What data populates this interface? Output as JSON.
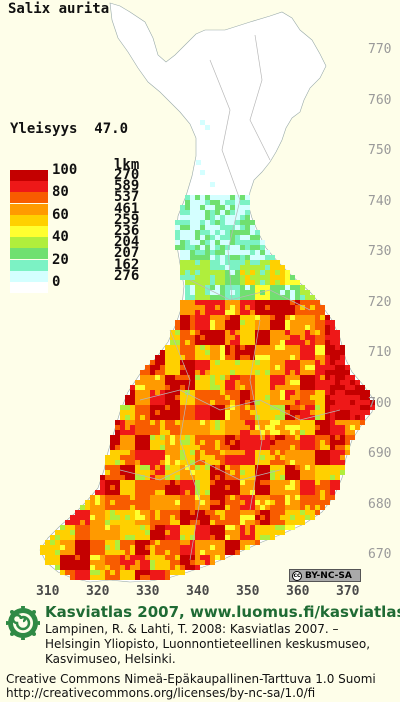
{
  "species": "Salix aurita",
  "frequency": {
    "label": "Yleisyys",
    "value": "47.0"
  },
  "legend": {
    "count_header": "lkm",
    "classes": [
      {
        "label": "100",
        "color": "#c40000",
        "count": "270"
      },
      {
        "label": "",
        "color": "#ee1818",
        "count": "589"
      },
      {
        "label": "80",
        "color": "#f85c00",
        "count": "537"
      },
      {
        "label": "",
        "color": "#ff9a00",
        "count": "461"
      },
      {
        "label": "60",
        "color": "#ffd000",
        "count": "259"
      },
      {
        "label": "",
        "color": "#ffff30",
        "count": "236"
      },
      {
        "label": "40",
        "color": "#b0ee3c",
        "count": "204"
      },
      {
        "label": "",
        "color": "#70e070",
        "count": "207"
      },
      {
        "label": "20",
        "color": "#7cf2c4",
        "count": "162"
      },
      {
        "label": "",
        "color": "#d4ffff",
        "count": "276"
      },
      {
        "label": "0",
        "color": "#ffffff",
        "count": ""
      }
    ]
  },
  "grid_y_labels": [
    "770",
    "760",
    "750",
    "740",
    "730",
    "720",
    "710",
    "700",
    "690",
    "680",
    "670"
  ],
  "grid_x_labels": [
    "310",
    "320",
    "330",
    "340",
    "350",
    "360",
    "370"
  ],
  "license_badge": "BY-NC-SA",
  "footer": {
    "title": "Kasviatlas 2007, www.luomus.fi/kasviatlas",
    "citation_lines": [
      "Lampinen, R. & Lahti, T. 2008: Kasviatlas 2007. –",
      "Helsingin Yliopisto, Luonnontieteellinen keskusmuseo,",
      "Kasvimuseo, Helsinki."
    ],
    "license_lines": [
      "Creative Commons Nimeä-Epäkaupallinen-Tarttuva 1.0 Suomi",
      "http://creativecommons.org/licenses/by-nc-sa/1.0/fi"
    ]
  }
}
